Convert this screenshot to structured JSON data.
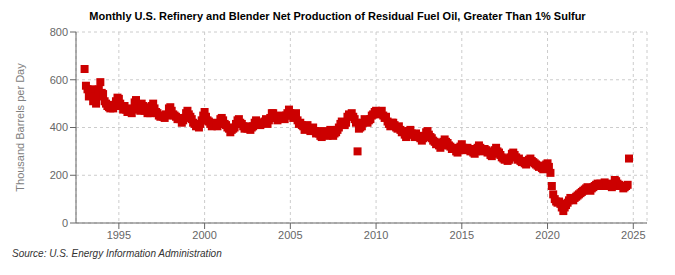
{
  "chart_data": {
    "type": "scatter",
    "title": "Monthly U.S. Refinery and Blender Net Production of Residual Fuel Oil, Greater Than 1% Sulfur",
    "ylabel": "Thousand Barrels per Day",
    "annotations": [
      "Source: U.S. Energy Information Administration"
    ],
    "color": "#cc0000",
    "marker": "square",
    "grid": true,
    "xlim": [
      1992.5,
      2025.8
    ],
    "xticks": [
      1995,
      2000,
      2005,
      2010,
      2015,
      2020,
      2025
    ],
    "ylim": [
      0,
      800
    ],
    "yticks": [
      0,
      200,
      400,
      600,
      800
    ],
    "x": [
      1993.0,
      1993.08,
      1993.17,
      1993.25,
      1993.33,
      1993.42,
      1993.5,
      1993.58,
      1993.67,
      1993.75,
      1993.83,
      1993.92,
      1994.0,
      1994.08,
      1994.17,
      1994.25,
      1994.33,
      1994.42,
      1994.5,
      1994.58,
      1994.67,
      1994.75,
      1994.83,
      1994.92,
      1995.0,
      1995.08,
      1995.17,
      1995.25,
      1995.33,
      1995.42,
      1995.5,
      1995.58,
      1995.67,
      1995.75,
      1995.83,
      1995.92,
      1996.0,
      1996.08,
      1996.17,
      1996.25,
      1996.33,
      1996.42,
      1996.5,
      1996.58,
      1996.67,
      1996.75,
      1996.83,
      1996.92,
      1997.0,
      1997.08,
      1997.17,
      1997.25,
      1997.33,
      1997.42,
      1997.5,
      1997.58,
      1997.67,
      1997.75,
      1997.83,
      1997.92,
      1998.0,
      1998.08,
      1998.17,
      1998.25,
      1998.33,
      1998.42,
      1998.5,
      1998.58,
      1998.67,
      1998.75,
      1998.83,
      1998.92,
      1999.0,
      1999.08,
      1999.17,
      1999.25,
      1999.33,
      1999.42,
      1999.5,
      1999.58,
      1999.67,
      1999.75,
      1999.83,
      1999.92,
      2000.0,
      2000.08,
      2000.17,
      2000.25,
      2000.33,
      2000.42,
      2000.5,
      2000.58,
      2000.67,
      2000.75,
      2000.83,
      2000.92,
      2001.0,
      2001.08,
      2001.17,
      2001.25,
      2001.33,
      2001.42,
      2001.5,
      2001.58,
      2001.67,
      2001.75,
      2001.83,
      2001.92,
      2002.0,
      2002.08,
      2002.17,
      2002.25,
      2002.33,
      2002.42,
      2002.5,
      2002.58,
      2002.67,
      2002.75,
      2002.83,
      2002.92,
      2003.0,
      2003.08,
      2003.17,
      2003.25,
      2003.33,
      2003.42,
      2003.5,
      2003.58,
      2003.67,
      2003.75,
      2003.83,
      2003.92,
      2004.0,
      2004.08,
      2004.17,
      2004.25,
      2004.33,
      2004.42,
      2004.5,
      2004.58,
      2004.67,
      2004.75,
      2004.83,
      2004.92,
      2005.0,
      2005.08,
      2005.17,
      2005.25,
      2005.33,
      2005.42,
      2005.5,
      2005.58,
      2005.67,
      2005.75,
      2005.83,
      2005.92,
      2006.0,
      2006.08,
      2006.17,
      2006.25,
      2006.33,
      2006.42,
      2006.5,
      2006.58,
      2006.67,
      2006.75,
      2006.83,
      2006.92,
      2007.0,
      2007.08,
      2007.17,
      2007.25,
      2007.33,
      2007.42,
      2007.5,
      2007.58,
      2007.67,
      2007.75,
      2007.83,
      2007.92,
      2008.0,
      2008.08,
      2008.17,
      2008.25,
      2008.33,
      2008.42,
      2008.5,
      2008.58,
      2008.67,
      2008.75,
      2008.83,
      2008.92,
      2009.0,
      2009.08,
      2009.17,
      2009.25,
      2009.33,
      2009.42,
      2009.5,
      2009.58,
      2009.67,
      2009.75,
      2009.83,
      2009.92,
      2010.0,
      2010.08,
      2010.17,
      2010.25,
      2010.33,
      2010.42,
      2010.5,
      2010.58,
      2010.67,
      2010.75,
      2010.83,
      2010.92,
      2011.0,
      2011.08,
      2011.17,
      2011.25,
      2011.33,
      2011.42,
      2011.5,
      2011.58,
      2011.67,
      2011.75,
      2011.83,
      2011.92,
      2012.0,
      2012.08,
      2012.17,
      2012.25,
      2012.33,
      2012.42,
      2012.5,
      2012.58,
      2012.67,
      2012.75,
      2012.83,
      2012.92,
      2013.0,
      2013.08,
      2013.17,
      2013.25,
      2013.33,
      2013.42,
      2013.5,
      2013.58,
      2013.67,
      2013.75,
      2013.83,
      2013.92,
      2014.0,
      2014.08,
      2014.17,
      2014.25,
      2014.33,
      2014.42,
      2014.5,
      2014.58,
      2014.67,
      2014.75,
      2014.83,
      2014.92,
      2015.0,
      2015.08,
      2015.17,
      2015.25,
      2015.33,
      2015.42,
      2015.5,
      2015.58,
      2015.67,
      2015.75,
      2015.83,
      2015.92,
      2016.0,
      2016.08,
      2016.17,
      2016.25,
      2016.33,
      2016.42,
      2016.5,
      2016.58,
      2016.67,
      2016.75,
      2016.83,
      2016.92,
      2017.0,
      2017.08,
      2017.17,
      2017.25,
      2017.33,
      2017.42,
      2017.5,
      2017.58,
      2017.67,
      2017.75,
      2017.83,
      2017.92,
      2018.0,
      2018.08,
      2018.17,
      2018.25,
      2018.33,
      2018.42,
      2018.5,
      2018.58,
      2018.67,
      2018.75,
      2018.83,
      2018.92,
      2019.0,
      2019.08,
      2019.17,
      2019.25,
      2019.33,
      2019.42,
      2019.5,
      2019.58,
      2019.67,
      2019.75,
      2019.83,
      2019.92,
      2020.0,
      2020.08,
      2020.17,
      2020.25,
      2020.33,
      2020.42,
      2020.5,
      2020.58,
      2020.67,
      2020.75,
      2020.83,
      2020.92,
      2021.0,
      2021.08,
      2021.17,
      2021.25,
      2021.33,
      2021.42,
      2021.5,
      2021.58,
      2021.67,
      2021.75,
      2021.83,
      2021.92,
      2022.0,
      2022.08,
      2022.17,
      2022.25,
      2022.33,
      2022.42,
      2022.5,
      2022.58,
      2022.67,
      2022.75,
      2022.83,
      2022.92,
      2023.0,
      2023.08,
      2023.17,
      2023.25,
      2023.33,
      2023.42,
      2023.5,
      2023.58,
      2023.67,
      2023.75,
      2023.83,
      2023.92,
      2024.0,
      2024.08,
      2024.17,
      2024.25,
      2024.33,
      2024.42,
      2024.5,
      2024.58,
      2024.67,
      2024.75
    ],
    "values": [
      645,
      575,
      560,
      530,
      540,
      560,
      510,
      530,
      500,
      530,
      560,
      590,
      545,
      540,
      510,
      500,
      490,
      485,
      480,
      495,
      480,
      490,
      510,
      525,
      520,
      500,
      490,
      475,
      490,
      475,
      465,
      480,
      470,
      460,
      475,
      505,
      515,
      495,
      480,
      470,
      500,
      490,
      470,
      485,
      460,
      465,
      460,
      490,
      500,
      480,
      465,
      460,
      450,
      445,
      450,
      445,
      440,
      455,
      450,
      480,
      485,
      470,
      455,
      450,
      445,
      435,
      440,
      435,
      420,
      430,
      440,
      460,
      470,
      455,
      445,
      435,
      420,
      415,
      405,
      410,
      400,
      415,
      430,
      450,
      465,
      445,
      430,
      425,
      415,
      405,
      415,
      420,
      410,
      405,
      415,
      435,
      440,
      430,
      415,
      410,
      400,
      395,
      380,
      390,
      395,
      400,
      415,
      430,
      435,
      420,
      415,
      405,
      395,
      400,
      395,
      405,
      390,
      400,
      405,
      420,
      430,
      415,
      420,
      410,
      420,
      420,
      425,
      435,
      415,
      430,
      440,
      460,
      460,
      445,
      440,
      430,
      440,
      450,
      440,
      445,
      435,
      450,
      460,
      475,
      460,
      450,
      440,
      450,
      460,
      430,
      415,
      420,
      410,
      405,
      390,
      405,
      410,
      395,
      385,
      390,
      400,
      385,
      375,
      385,
      375,
      365,
      360,
      370,
      385,
      370,
      365,
      380,
      390,
      375,
      365,
      375,
      380,
      390,
      400,
      415,
      425,
      415,
      410,
      420,
      445,
      455,
      450,
      460,
      445,
      435,
      420,
      300,
      395,
      400,
      405,
      420,
      435,
      425,
      420,
      430,
      435,
      450,
      455,
      465,
      470,
      460,
      455,
      460,
      470,
      450,
      440,
      445,
      425,
      415,
      405,
      420,
      420,
      410,
      400,
      395,
      405,
      390,
      380,
      385,
      370,
      360,
      370,
      385,
      390,
      375,
      370,
      360,
      375,
      365,
      360,
      355,
      345,
      355,
      365,
      380,
      385,
      370,
      360,
      355,
      345,
      340,
      330,
      335,
      325,
      315,
      325,
      340,
      350,
      340,
      335,
      325,
      320,
      310,
      315,
      310,
      300,
      295,
      305,
      320,
      330,
      315,
      310,
      305,
      315,
      310,
      300,
      310,
      295,
      290,
      300,
      315,
      325,
      315,
      305,
      300,
      310,
      305,
      295,
      300,
      285,
      280,
      290,
      305,
      315,
      300,
      295,
      285,
      275,
      270,
      265,
      270,
      260,
      265,
      275,
      290,
      295,
      285,
      275,
      265,
      270,
      260,
      255,
      260,
      250,
      245,
      255,
      265,
      270,
      260,
      255,
      250,
      245,
      240,
      235,
      240,
      230,
      225,
      235,
      245,
      250,
      235,
      210,
      155,
      120,
      100,
      90,
      85,
      90,
      80,
      65,
      50,
      65,
      75,
      85,
      95,
      105,
      100,
      95,
      105,
      110,
      115,
      120,
      125,
      130,
      135,
      140,
      145,
      150,
      140,
      135,
      145,
      150,
      155,
      160,
      165,
      160,
      165,
      155,
      160,
      170,
      160,
      155,
      160,
      165,
      150,
      155,
      180,
      175,
      165,
      160,
      155,
      155,
      145,
      150,
      155,
      160,
      270
    ]
  }
}
